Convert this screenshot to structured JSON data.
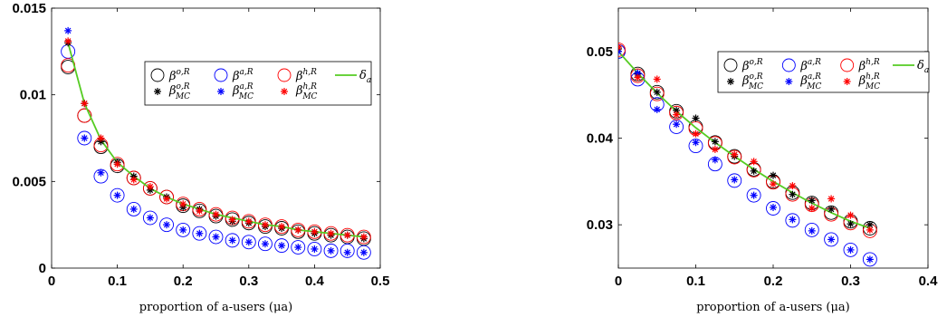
{
  "chart_data": [
    {
      "type": "scatter",
      "xlabel": "proportion of a-users (μa)",
      "ylabel": "",
      "xlim": [
        0,
        0.5
      ],
      "ylim": [
        0,
        0.015
      ],
      "xticks": [
        "0",
        "0.1",
        "0.2",
        "0.3",
        "0.4",
        "0.5"
      ],
      "yticks": [
        "0",
        "0.005",
        "0.01",
        "0.015"
      ],
      "grid": false,
      "legend_position": "top-right",
      "x": [
        0.025,
        0.05,
        0.075,
        0.1,
        0.125,
        0.15,
        0.175,
        0.2,
        0.225,
        0.25,
        0.275,
        0.3,
        0.325,
        0.35,
        0.375,
        0.4,
        0.425,
        0.45,
        0.475
      ],
      "series": [
        {
          "name": "β^{o,R}",
          "marker": "circle",
          "color": "#000000",
          "values": [
            0.0116,
            0.0088,
            0.007,
            0.0059,
            0.0052,
            0.0046,
            0.0041,
            0.0036,
            0.0033,
            0.003,
            0.0028,
            0.0026,
            0.0024,
            0.0023,
            0.0021,
            0.002,
            0.0019,
            0.0018,
            0.0017
          ]
        },
        {
          "name": "β^{a,R}",
          "marker": "circle",
          "color": "#0000ff",
          "values": [
            0.0125,
            0.0075,
            0.0053,
            0.0042,
            0.0034,
            0.0029,
            0.0025,
            0.0022,
            0.002,
            0.0018,
            0.0016,
            0.0015,
            0.0014,
            0.0013,
            0.0012,
            0.0011,
            0.001,
            0.001,
            0.0009
          ]
        },
        {
          "name": "β^{h,R}",
          "marker": "circle",
          "color": "#ff0000",
          "values": [
            0.0117,
            0.0088,
            0.0071,
            0.006,
            0.0052,
            0.0046,
            0.0041,
            0.0037,
            0.0034,
            0.0031,
            0.0029,
            0.0027,
            0.0025,
            0.0024,
            0.0022,
            0.0021,
            0.002,
            0.0019,
            0.0018
          ]
        },
        {
          "name": "β^{o,R}_{MC}",
          "marker": "asterisk",
          "color": "#000000",
          "values": [
            0.013,
            0.0095,
            0.0073,
            0.0061,
            0.0053,
            0.0045,
            0.0041,
            0.0035,
            0.0034,
            0.003,
            0.0027,
            0.0026,
            0.0024,
            0.0023,
            0.0022,
            0.002,
            0.0019,
            0.0019,
            0.0017
          ]
        },
        {
          "name": "β^{a,R}_{MC}",
          "marker": "asterisk",
          "color": "#0000ff",
          "values": [
            0.0137,
            0.0075,
            0.0055,
            0.0042,
            0.0034,
            0.0029,
            0.0025,
            0.0022,
            0.002,
            0.0018,
            0.0016,
            0.0015,
            0.0014,
            0.0013,
            0.0012,
            0.0011,
            0.001,
            0.0009,
            0.0009
          ]
        },
        {
          "name": "β^{h,R}_{MC}",
          "marker": "asterisk",
          "color": "#ff0000",
          "values": [
            0.0131,
            0.0095,
            0.0075,
            0.006,
            0.0051,
            0.0047,
            0.004,
            0.0037,
            0.0033,
            0.0031,
            0.0028,
            0.0027,
            0.0025,
            0.0024,
            0.0022,
            0.0021,
            0.002,
            0.0019,
            0.0018
          ]
        },
        {
          "name": "δ_a",
          "marker": "line",
          "color": "#55cc22",
          "values": [
            0.013,
            0.0095,
            0.0074,
            0.0061,
            0.0053,
            0.0046,
            0.0041,
            0.0037,
            0.0034,
            0.0031,
            0.0029,
            0.0027,
            0.0025,
            0.0024,
            0.0022,
            0.0021,
            0.002,
            0.0019,
            0.0018
          ]
        }
      ]
    },
    {
      "type": "scatter",
      "xlabel": "proportion of a-users (μa)",
      "ylabel": "",
      "xlim": [
        0,
        0.4
      ],
      "ylim": [
        0.025,
        0.055
      ],
      "xticks": [
        "0",
        "0.1",
        "0.2",
        "0.3",
        "0.4"
      ],
      "yticks": [
        "0.03",
        "0.04",
        "0.05"
      ],
      "grid": false,
      "legend_position": "top-right",
      "x": [
        0,
        0.025,
        0.05,
        0.075,
        0.1,
        0.125,
        0.15,
        0.175,
        0.2,
        0.225,
        0.25,
        0.275,
        0.3,
        0.325
      ],
      "series": [
        {
          "name": "β^{o,R}",
          "marker": "circle",
          "color": "#000000",
          "values": [
            0.05,
            0.0474,
            0.0453,
            0.0431,
            0.0413,
            0.0395,
            0.0379,
            0.0364,
            0.035,
            0.0337,
            0.0325,
            0.0314,
            0.0304,
            0.0296
          ]
        },
        {
          "name": "β^{a,R}",
          "marker": "circle",
          "color": "#0000ff",
          "values": [
            0.05,
            0.0468,
            0.0439,
            0.0413,
            0.0391,
            0.037,
            0.0351,
            0.0334,
            0.0319,
            0.0305,
            0.0294,
            0.0283,
            0.0271,
            0.026
          ]
        },
        {
          "name": "β^{h,R}",
          "marker": "circle",
          "color": "#ff0000",
          "values": [
            0.0502,
            0.0472,
            0.0451,
            0.0429,
            0.0411,
            0.0394,
            0.0378,
            0.0363,
            0.0349,
            0.0335,
            0.0323,
            0.0312,
            0.0302,
            0.0293
          ]
        },
        {
          "name": "β^{o,R}_{MC}",
          "marker": "asterisk",
          "color": "#000000",
          "values": [
            0.0503,
            0.0474,
            0.0453,
            0.0432,
            0.0423,
            0.0396,
            0.0379,
            0.0362,
            0.0357,
            0.0335,
            0.0328,
            0.0318,
            0.0301,
            0.03
          ]
        },
        {
          "name": "β^{a,R}_{MC}",
          "marker": "asterisk",
          "color": "#0000ff",
          "values": [
            0.05,
            0.0475,
            0.0433,
            0.0416,
            0.0395,
            0.0375,
            0.0352,
            0.0334,
            0.032,
            0.0306,
            0.0293,
            0.0283,
            0.0271,
            0.026
          ]
        },
        {
          "name": "β^{h,R}_{MC}",
          "marker": "asterisk",
          "color": "#ff0000",
          "values": [
            0.0505,
            0.047,
            0.0468,
            0.0427,
            0.0405,
            0.0387,
            0.0381,
            0.0373,
            0.0347,
            0.0345,
            0.0319,
            0.033,
            0.0311,
            0.0294
          ]
        },
        {
          "name": "δ_a",
          "marker": "line",
          "color": "#55cc22",
          "values": [
            0.05,
            0.0475,
            0.0452,
            0.0431,
            0.0412,
            0.0395,
            0.0379,
            0.0364,
            0.035,
            0.0337,
            0.0325,
            0.0314,
            0.0304,
            0.0296
          ]
        }
      ]
    }
  ]
}
